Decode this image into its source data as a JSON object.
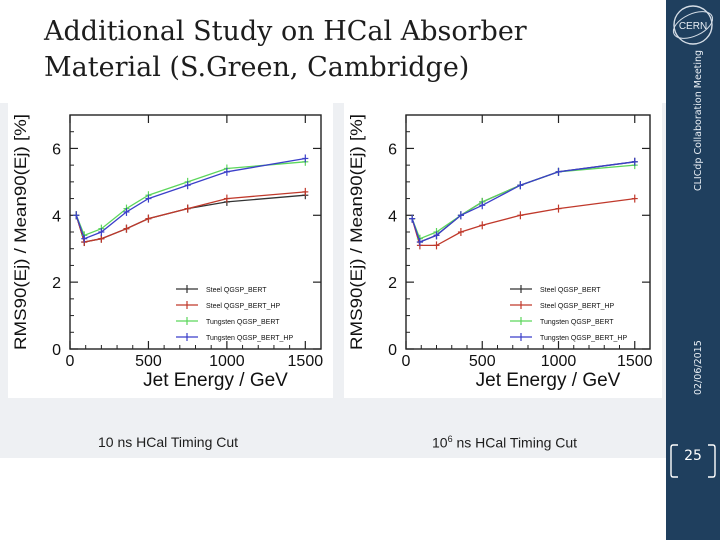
{
  "slide": {
    "title_line1": "Additional Study on HCal Absorber",
    "title_line2": "Material (S.Green, Cambridge)",
    "date": "02/06/2015",
    "meeting": "CLICdp Collaboration Meeting",
    "page_number": "25",
    "logo_text": "CERN"
  },
  "captions": {
    "left": "10 ns HCal Timing Cut",
    "right_base": "10",
    "right_exp": "6",
    "right_rest": " ns HCal Timing Cut"
  },
  "colors": {
    "right_bar": "#1f3f5e",
    "steel_bert": "#333333",
    "steel_hp": "#c0392b",
    "tungsten_bert": "#5cd65c",
    "tungsten_hp": "#3b3fc9"
  },
  "chart_data": [
    {
      "type": "line",
      "title": "",
      "xlabel": "Jet Energy / GeV",
      "ylabel": "RMS90(Ej) / Mean90(Ej) [%]",
      "xlim": [
        0,
        1600
      ],
      "ylim": [
        0,
        7
      ],
      "xticks": [
        0,
        500,
        1000,
        1500
      ],
      "yticks": [
        0,
        2,
        4,
        6
      ],
      "grid": false,
      "legend_position": "bottom-right",
      "x": [
        40,
        91,
        200,
        360,
        500,
        750,
        1000,
        1500
      ],
      "series": [
        {
          "name": "Steel QGSP_BERT",
          "color": "#333333",
          "values": [
            4.0,
            3.2,
            3.3,
            3.6,
            3.9,
            4.2,
            4.4,
            4.6
          ]
        },
        {
          "name": "Steel QGSP_BERT_HP",
          "color": "#c0392b",
          "values": [
            4.0,
            3.2,
            3.3,
            3.6,
            3.9,
            4.2,
            4.5,
            4.7
          ]
        },
        {
          "name": "Tungsten QGSP_BERT",
          "color": "#5cd65c",
          "values": [
            4.0,
            3.4,
            3.6,
            4.2,
            4.6,
            5.0,
            5.4,
            5.6
          ]
        },
        {
          "name": "Tungsten QGSP_BERT_HP",
          "color": "#3b3fc9",
          "values": [
            4.0,
            3.3,
            3.5,
            4.1,
            4.5,
            4.9,
            5.3,
            5.7
          ]
        }
      ]
    },
    {
      "type": "line",
      "title": "",
      "xlabel": "Jet Energy / GeV",
      "ylabel": "RMS90(Ej) / Mean90(Ej) [%]",
      "xlim": [
        0,
        1600
      ],
      "ylim": [
        0,
        7
      ],
      "xticks": [
        0,
        500,
        1000,
        1500
      ],
      "yticks": [
        0,
        2,
        4,
        6
      ],
      "grid": false,
      "legend_position": "bottom-right",
      "x": [
        40,
        91,
        200,
        360,
        500,
        750,
        1000,
        1500
      ],
      "series": [
        {
          "name": "Steel QGSP_BERT",
          "color": "#333333",
          "values": [
            3.9,
            3.2,
            3.4,
            4.0,
            4.4,
            4.9,
            5.3,
            5.6
          ]
        },
        {
          "name": "Steel QGSP_BERT_HP",
          "color": "#c0392b",
          "values": [
            3.9,
            3.1,
            3.1,
            3.5,
            3.7,
            4.0,
            4.2,
            4.5
          ]
        },
        {
          "name": "Tungsten QGSP_BERT",
          "color": "#5cd65c",
          "values": [
            3.9,
            3.3,
            3.5,
            4.0,
            4.4,
            4.9,
            5.3,
            5.5
          ]
        },
        {
          "name": "Tungsten QGSP_BERT_HP",
          "color": "#3b3fc9",
          "values": [
            3.9,
            3.2,
            3.4,
            4.0,
            4.3,
            4.9,
            5.3,
            5.6
          ]
        }
      ]
    }
  ]
}
